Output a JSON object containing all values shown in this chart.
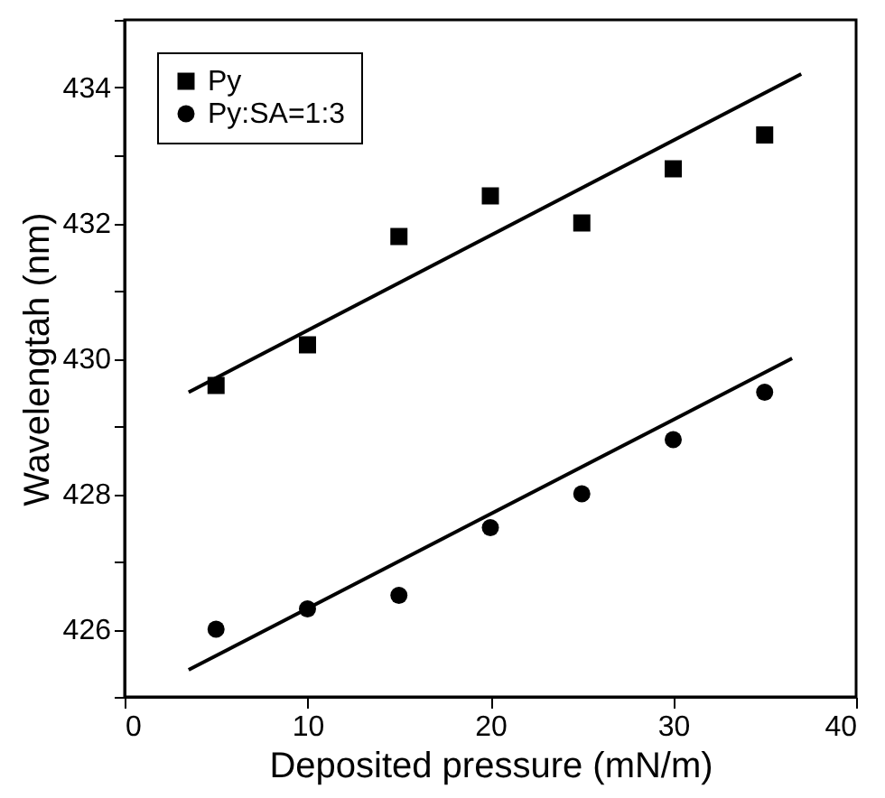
{
  "chart_data": {
    "type": "scatter",
    "xlabel": "Deposited pressure (mN/m)",
    "ylabel": "Wavelengtah (nm)",
    "x": [
      5,
      10,
      15,
      20,
      25,
      30,
      35
    ],
    "series": [
      {
        "name": "Py",
        "color": "#000000",
        "marker": "square",
        "values": [
          429.6,
          430.2,
          431.8,
          432.4,
          432.0,
          432.8,
          433.3
        ]
      },
      {
        "name": "Py:SA=1:3",
        "color": "#000000",
        "marker": "circle",
        "values": [
          426.0,
          426.3,
          426.5,
          427.5,
          428.0,
          428.8,
          429.5
        ]
      },
      {
        "type": "line",
        "color": "#000000",
        "x": [
          3.5,
          37
        ],
        "values": [
          429.5,
          434.2
        ]
      },
      {
        "type": "line",
        "color": "#000000",
        "x": [
          3.5,
          36.5
        ],
        "values": [
          425.4,
          430.0
        ]
      }
    ],
    "xlim": [
      0,
      40
    ],
    "xticks": [
      0,
      10,
      20,
      30,
      40
    ],
    "ylim": [
      425,
      435
    ],
    "yticks": [
      {
        "value": 425,
        "label": null
      },
      426,
      {
        "value": 427,
        "label": null
      },
      428,
      {
        "value": 429,
        "label": null
      },
      430,
      {
        "value": 431,
        "label": null
      },
      432,
      {
        "value": 433,
        "label": null
      },
      434,
      {
        "value": 435,
        "label": null
      }
    ],
    "legend": "top left",
    "grid": false
  }
}
